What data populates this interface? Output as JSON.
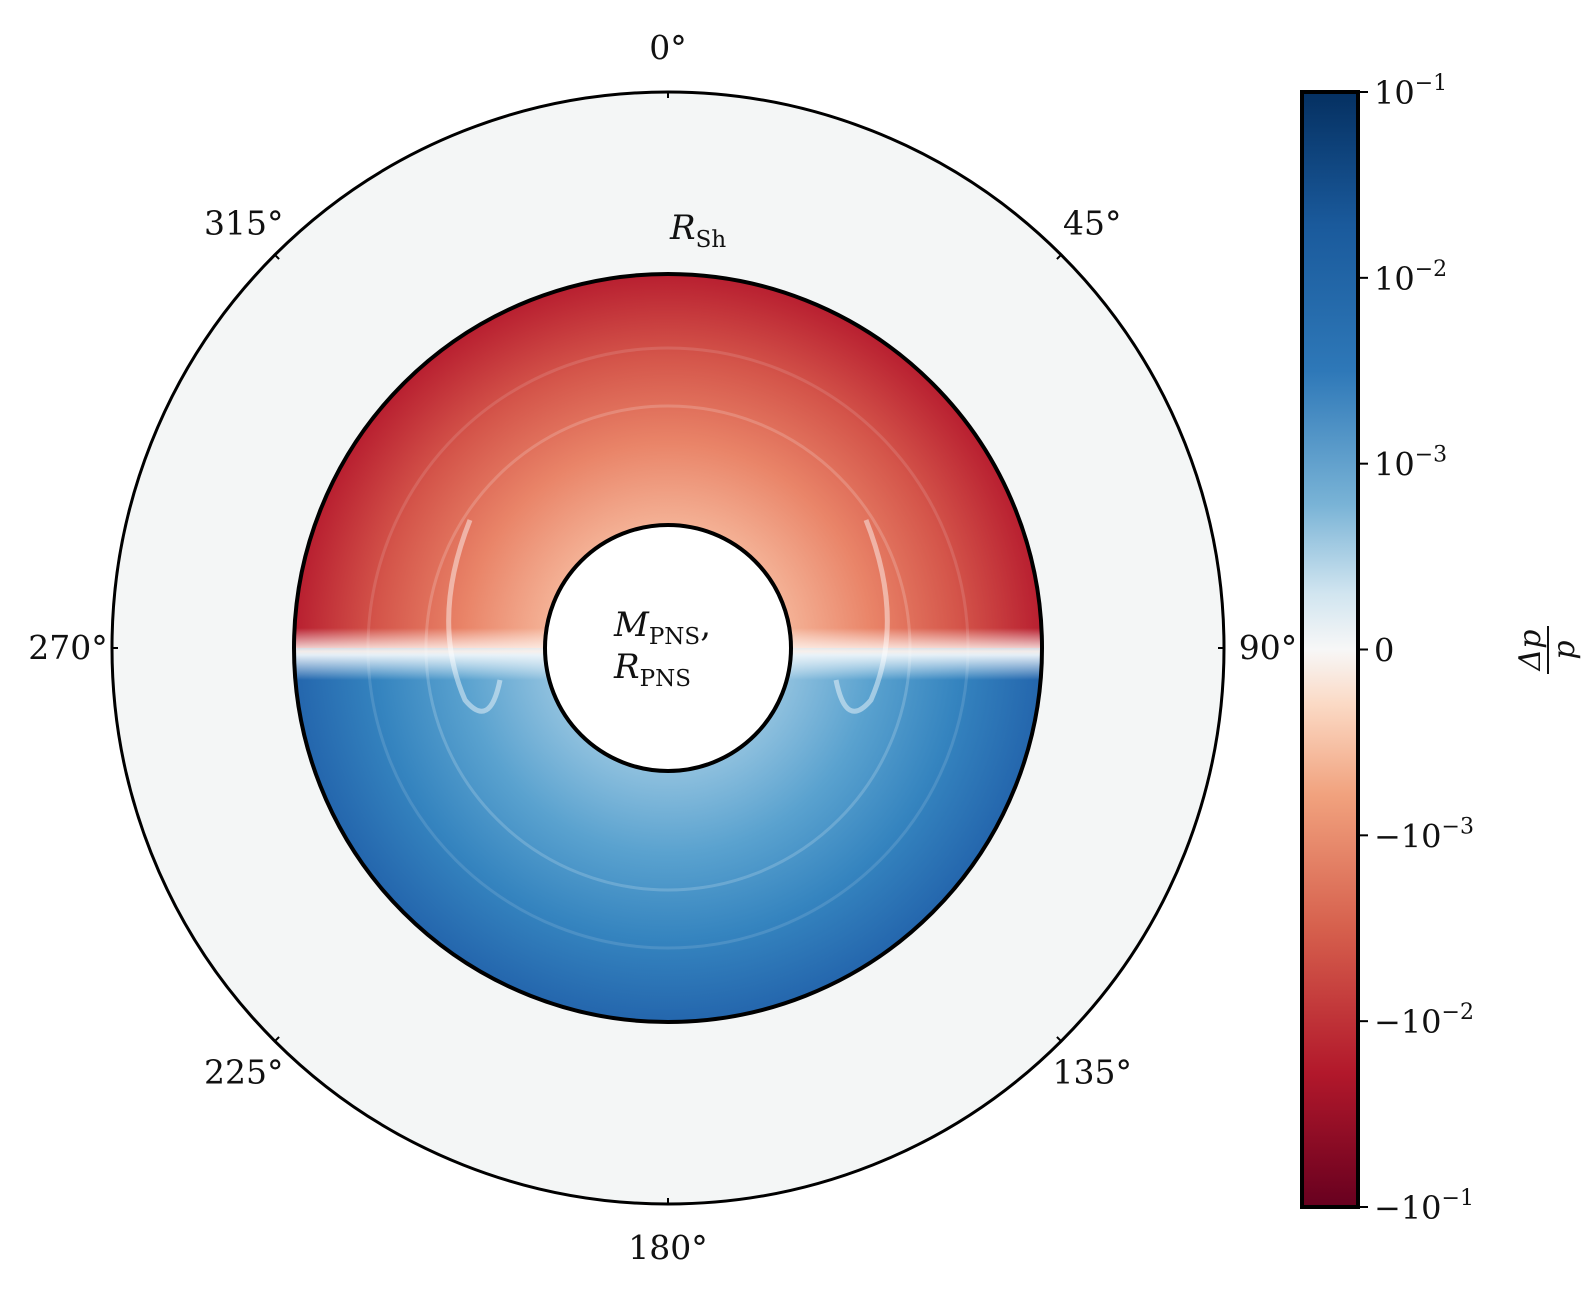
{
  "chart_data": {
    "type": "heatmap",
    "projection": "polar",
    "theta_direction": "clockwise",
    "theta_zero": "top",
    "angular_ticks": [
      {
        "angle": 0,
        "label": "0°"
      },
      {
        "angle": 45,
        "label": "45°"
      },
      {
        "angle": 90,
        "label": "90°"
      },
      {
        "angle": 135,
        "label": "135°"
      },
      {
        "angle": 180,
        "label": "180°"
      },
      {
        "angle": 225,
        "label": "225°"
      },
      {
        "angle": 270,
        "label": "270°"
      },
      {
        "angle": 315,
        "label": "315°"
      }
    ],
    "radial_labels": {
      "shock": {
        "base": "R",
        "sub": "Sh"
      },
      "inner_line1": {
        "base": "M",
        "sub": "PNS",
        "suffix": ","
      },
      "inner_line2": {
        "base": "R",
        "sub": "PNS"
      }
    },
    "field": {
      "description_sign": "upper half (theta 270°→0°→90°) negative, lower half (90°→180°→270°) positive",
      "upper_half_value_edge": -0.02,
      "upper_half_value_mid": -0.003,
      "lower_half_value_edge": 0.02,
      "lower_half_value_mid": 0.005,
      "near_equator_value": 0.0005
    },
    "colorbar": {
      "scale": "symlog",
      "label": {
        "num": "Δp",
        "den": "p"
      },
      "colormap": "RdBu",
      "ticks": [
        {
          "value": 0.1,
          "base": "10",
          "exp": "−1",
          "sign": ""
        },
        {
          "value": 0.01,
          "base": "10",
          "exp": "−2",
          "sign": ""
        },
        {
          "value": 0.001,
          "base": "10",
          "exp": "−3",
          "sign": ""
        },
        {
          "value": 0,
          "base": "0",
          "exp": "",
          "sign": ""
        },
        {
          "value": -0.001,
          "base": "10",
          "exp": "−3",
          "sign": "−"
        },
        {
          "value": -0.01,
          "base": "10",
          "exp": "−2",
          "sign": "−"
        },
        {
          "value": -0.1,
          "base": "10",
          "exp": "−1",
          "sign": "−"
        }
      ]
    },
    "colors": {
      "outer_background": "#f4f6f6",
      "edge": "#000000"
    }
  }
}
